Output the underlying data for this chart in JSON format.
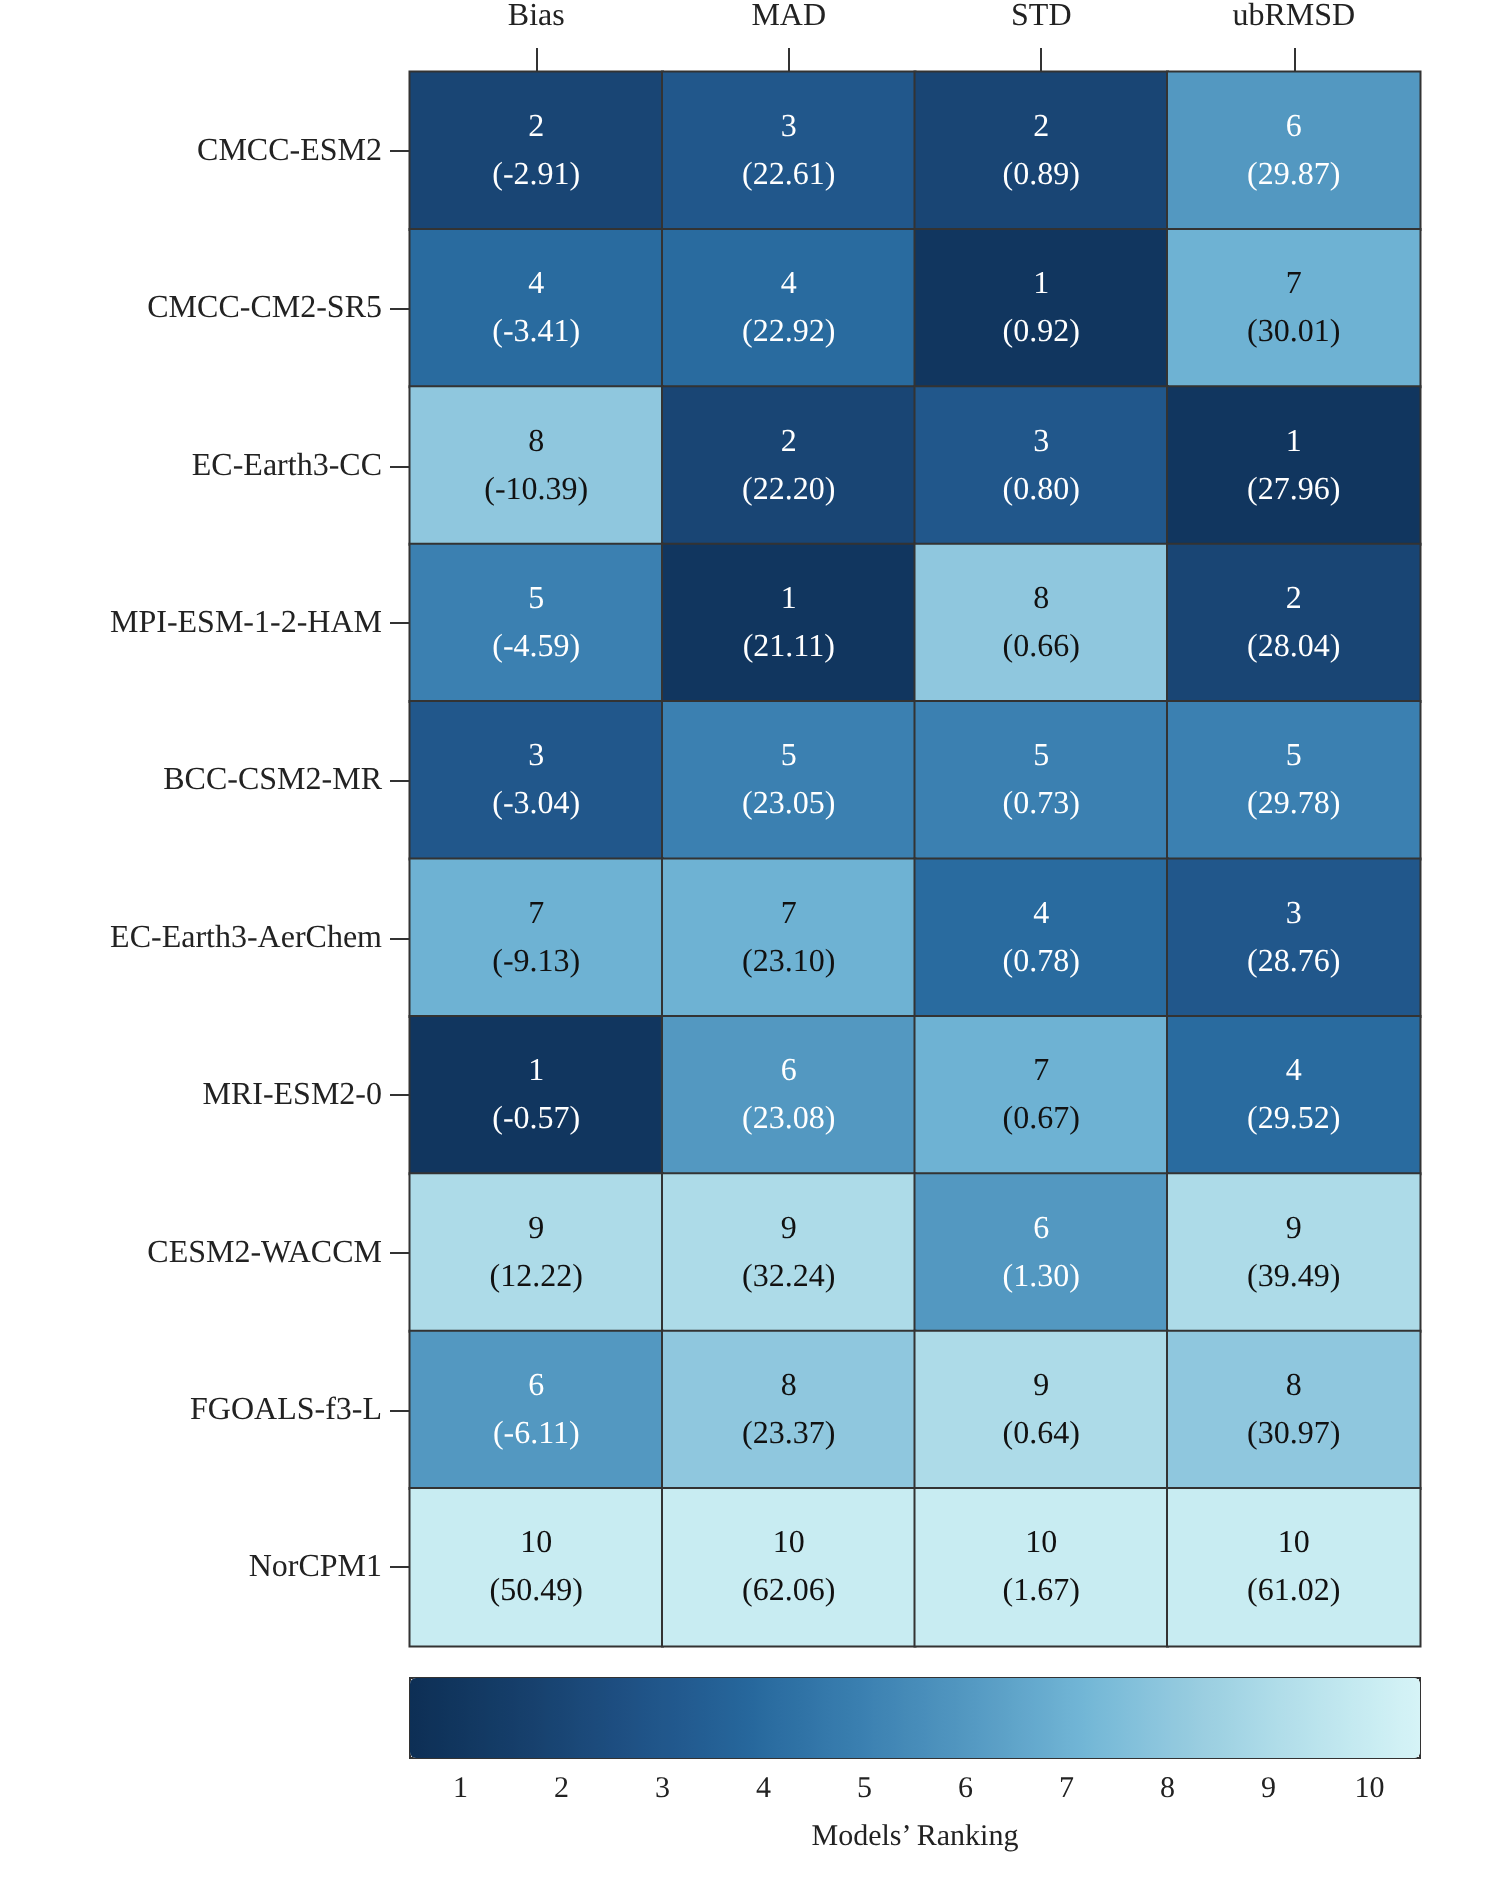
{
  "chart_data": {
    "type": "heatmap",
    "categories": [
      "Bias",
      "MAD",
      "STD",
      "ubRMSD"
    ],
    "y_categories": [
      "CMCC-ESM2",
      "CMCC-CM2-SR5",
      "EC-Earth3-CC",
      "MPI-ESM-1-2-HAM",
      "BCC-CSM2-MR",
      "EC-Earth3-AerChem",
      "MRI-ESM2-0",
      "CESM2-WACCM",
      "FGOALS-f3-L",
      "NorCPM1"
    ],
    "cells": [
      [
        2,
        3,
        2,
        6
      ],
      [
        4,
        4,
        1,
        7
      ],
      [
        8,
        2,
        3,
        1
      ],
      [
        5,
        1,
        8,
        2
      ],
      [
        3,
        5,
        5,
        5
      ],
      [
        7,
        7,
        4,
        3
      ],
      [
        1,
        6,
        7,
        4
      ],
      [
        9,
        9,
        6,
        9
      ],
      [
        6,
        8,
        9,
        8
      ],
      [
        10,
        10,
        10,
        10
      ]
    ],
    "cell_labels": [
      [
        "2\n(-2.91)",
        "3\n(22.61)",
        "2\n(0.89)",
        "6\n(29.87)"
      ],
      [
        "4\n(-3.41)",
        "4\n(22.92)",
        "1\n(0.92)",
        "7\n(30.01)"
      ],
      [
        "8\n(-10.39)",
        "2\n(22.20)",
        "3\n(0.80)",
        "1\n(27.96)"
      ],
      [
        "5\n(-4.59)",
        "1\n(21.11)",
        "8\n(0.66)",
        "2\n(28.04)"
      ],
      [
        "3\n(-3.04)",
        "5\n(23.05)",
        "5\n(0.73)",
        "5\n(29.78)"
      ],
      [
        "7\n(-9.13)",
        "7\n(23.10)",
        "4\n(0.78)",
        "3\n(28.76)"
      ],
      [
        "1\n(-0.57)",
        "6\n(23.08)",
        "7\n(0.67)",
        "4\n(29.52)"
      ],
      [
        "9\n(12.22)",
        "9\n(32.24)",
        "6\n(1.30)",
        "9\n(39.49)"
      ],
      [
        "6\n(-6.11)",
        "8\n(23.37)",
        "9\n(0.64)",
        "8\n(30.97)"
      ],
      [
        "10\n(50.49)",
        "10\n(62.06)",
        "10\n(1.67)",
        "10\n(61.02)"
      ]
    ],
    "clim": [
      0.5,
      10.5
    ],
    "cticks": [
      1,
      2,
      3,
      4,
      5,
      6,
      7,
      8,
      9,
      10
    ],
    "clabel": "Models’ Ranking"
  }
}
